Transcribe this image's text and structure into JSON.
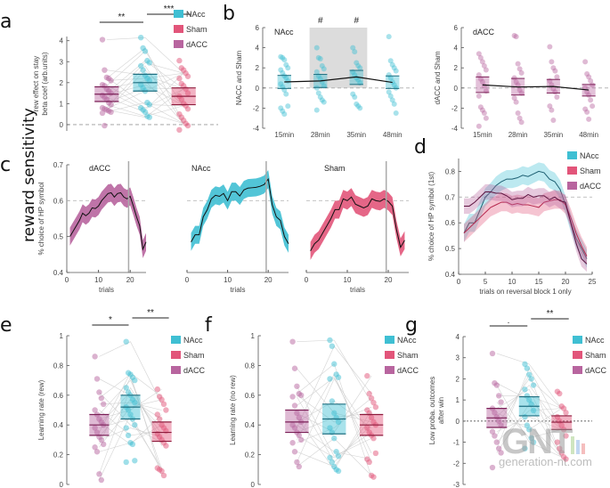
{
  "side_label": "reward sensitivity",
  "colors": {
    "NAcc": "#3fbfd3",
    "Sham": "#e2557a",
    "dACC": "#b8659f"
  },
  "legend": [
    {
      "name": "NAcc"
    },
    {
      "name": "Sham"
    },
    {
      "name": "dACC"
    }
  ],
  "watermark": {
    "logo": "GNT",
    "site": "generation-nt.com"
  },
  "chart_data": [
    {
      "id": "a",
      "panel_label": "a",
      "type": "scatter",
      "ylabel_lines": [
        "rew effect on stay",
        "beta coef (arb.units)"
      ],
      "ylim": [
        -0.3,
        4.2
      ],
      "yticks": [
        0,
        1,
        2,
        3,
        4
      ],
      "groups": [
        {
          "name": "dACC",
          "mean": 1.45,
          "q1": 1.1,
          "q3": 1.8,
          "points": [
            4.05,
            2.6,
            2.25,
            2.2,
            2.1,
            1.9,
            1.85,
            1.7,
            1.6,
            1.5,
            1.4,
            1.3,
            1.2,
            1.05,
            0.95,
            0.8,
            0.75,
            0.7,
            0.65,
            0.6,
            0.55,
            -0.05
          ]
        },
        {
          "name": "NAcc",
          "mean": 2.0,
          "q1": 1.6,
          "q3": 2.4,
          "points": [
            4.15,
            3.65,
            3.5,
            3.05,
            2.95,
            2.8,
            2.6,
            2.35,
            2.2,
            2.1,
            1.9,
            1.75,
            1.6,
            1.05,
            0.95,
            0.8,
            0.7,
            0.6,
            0.4,
            0.35
          ]
        },
        {
          "name": "Sham",
          "mean": 1.35,
          "q1": 0.95,
          "q3": 1.75,
          "points": [
            3.05,
            2.7,
            2.6,
            2.45,
            2.3,
            2.2,
            1.95,
            1.85,
            1.7,
            1.5,
            1.35,
            1.2,
            1.0,
            0.9,
            0.75,
            0.5,
            0.35,
            0.2,
            0.05,
            -0.05,
            -0.25
          ]
        }
      ],
      "significance": [
        {
          "from": "dACC",
          "to": "NAcc",
          "label": "**"
        },
        {
          "from": "NAcc",
          "to": "Sham",
          "label": "***"
        }
      ]
    },
    {
      "id": "b1",
      "panel_label": "b",
      "type": "scatter",
      "title": "NAcc",
      "ylabel": "NACC and Sham",
      "ylim": [
        -4,
        6
      ],
      "yticks": [
        -4,
        -2,
        0,
        2,
        4,
        6
      ],
      "categories": [
        "15min",
        "28min",
        "35min",
        "48min"
      ],
      "shaded": [
        "28min",
        "35min"
      ],
      "markers": [
        {
          "at": "28min",
          "label": "#"
        },
        {
          "at": "35min",
          "label": "#"
        }
      ],
      "series": {
        "color": "NAcc",
        "mean": [
          0.6,
          0.7,
          1.1,
          0.55
        ],
        "q1": [
          -0.05,
          0.05,
          0.35,
          -0.05
        ],
        "q3": [
          1.25,
          1.35,
          1.75,
          1.2
        ],
        "points": [
          [
            3.1,
            3.0,
            2.8,
            2.3,
            2.0,
            1.8,
            1.5,
            1.2,
            1.0,
            0.7,
            0.4,
            0.1,
            -0.2,
            -0.6,
            -1.8,
            -2.0,
            -2.3,
            -2.6
          ],
          [
            4.0,
            3.0,
            2.9,
            2.2,
            1.9,
            1.6,
            1.2,
            0.9,
            0.6,
            0.2,
            0.0,
            -0.5,
            -0.9,
            -1.2,
            -1.4,
            -2.2
          ],
          [
            4.0,
            3.6,
            2.5,
            2.2,
            2.0,
            1.6,
            1.3,
            1.0,
            0.8,
            0.5,
            -0.6,
            -0.9,
            -1.6,
            -1.8,
            -2.0
          ],
          [
            5.1,
            2.7,
            2.3,
            2.0,
            1.7,
            1.3,
            1.0,
            0.6,
            0.3,
            0.0,
            -0.4,
            -0.8,
            -1.2,
            -1.6,
            -2.5
          ]
        ]
      }
    },
    {
      "id": "b2",
      "type": "scatter",
      "title": "dACC",
      "ylabel": "dACC and Sham",
      "ylim": [
        -4,
        6
      ],
      "yticks": [
        -4,
        -2,
        0,
        2,
        4,
        6
      ],
      "categories": [
        "15min",
        "28min",
        "35min",
        "48min"
      ],
      "series": {
        "color": "dACC",
        "mean": [
          0.3,
          0.1,
          0.15,
          -0.2
        ],
        "q1": [
          -0.45,
          -0.7,
          -0.5,
          -0.8
        ],
        "q3": [
          1.1,
          0.95,
          0.85,
          0.35
        ],
        "points": [
          [
            3.4,
            3.0,
            2.6,
            2.2,
            1.8,
            1.3,
            0.9,
            0.6,
            0.2,
            -0.3,
            -0.8,
            -1.9,
            -2.2,
            -2.5,
            -3.0,
            -3.8
          ],
          [
            5.2,
            5.1,
            2.4,
            1.9,
            1.5,
            1.0,
            0.6,
            0.3,
            -0.2,
            -0.5,
            -1.0,
            -1.4,
            -2.5,
            -3.0,
            -3.4
          ],
          [
            4.1,
            2.6,
            2.0,
            1.7,
            1.1,
            0.7,
            0.3,
            -0.1,
            -0.4,
            -0.9,
            -1.8,
            -2.2,
            -3.2
          ],
          [
            2.6,
            1.4,
            1.1,
            0.7,
            0.3,
            0.0,
            -0.4,
            -0.7,
            -1.2,
            -1.8,
            -2.1,
            -2.4,
            -3.1
          ]
        ]
      }
    },
    {
      "id": "c",
      "panel_label": "c",
      "type": "line",
      "ylabel": "% choice of HP symbol",
      "xlabel": "trials",
      "ylim": [
        0.4,
        0.7
      ],
      "yticks": [
        0.4,
        0.5,
        0.6,
        0.7
      ],
      "xlim": [
        0,
        25
      ],
      "xticks": [
        0,
        10,
        20
      ],
      "reference_y": 0.6,
      "vline_x": 19.5,
      "subplots": [
        {
          "title": "dACC",
          "color": "dACC",
          "band": 0.025,
          "y": [
            0.5,
            0.515,
            0.53,
            0.545,
            0.565,
            0.558,
            0.565,
            0.58,
            0.578,
            0.585,
            0.6,
            0.61,
            0.62,
            0.622,
            0.61,
            0.62,
            0.622,
            0.61,
            0.605,
            0.612,
            0.585,
            0.555,
            0.53,
            0.465,
            0.485
          ]
        },
        {
          "title": "NAcc",
          "color": "NAcc",
          "band": 0.025,
          "y": [
            0.485,
            0.505,
            0.505,
            0.555,
            0.575,
            0.605,
            0.615,
            0.612,
            0.62,
            0.6,
            0.625,
            0.625,
            0.613,
            0.63,
            0.635,
            0.636,
            0.637,
            0.64,
            0.645,
            0.66,
            0.588,
            0.555,
            0.545,
            0.5,
            0.48
          ]
        },
        {
          "title": "Sham",
          "color": "Sham",
          "band": 0.025,
          "y": [
            0.46,
            0.48,
            0.49,
            0.51,
            0.53,
            0.55,
            0.575,
            0.575,
            0.605,
            0.6,
            0.61,
            0.59,
            0.585,
            0.58,
            0.585,
            0.605,
            0.6,
            0.598,
            0.605,
            0.598,
            0.585,
            0.52,
            0.47,
            0.49
          ]
        }
      ]
    },
    {
      "id": "d",
      "panel_label": "d",
      "type": "line",
      "ylabel": "% choice of HP symbol (1st)",
      "xlabel": "trials on reversal block 1 only",
      "ylim": [
        0.4,
        0.85
      ],
      "yticks": [
        0.4,
        0.5,
        0.6,
        0.7,
        0.8
      ],
      "xlim": [
        0,
        25
      ],
      "xticks": [
        0,
        5,
        10,
        15,
        20,
        25
      ],
      "reference_y": 0.7,
      "series": [
        {
          "name": "NAcc",
          "color": "NAcc",
          "band": 0.035,
          "x": [
            1,
            2,
            3,
            4,
            5,
            6,
            7,
            8,
            9,
            10,
            11,
            12,
            13,
            14,
            15,
            16,
            17,
            18,
            19,
            20,
            21,
            22,
            23,
            24
          ],
          "y": [
            0.56,
            0.6,
            0.6,
            0.65,
            0.7,
            0.72,
            0.745,
            0.76,
            0.77,
            0.77,
            0.775,
            0.785,
            0.78,
            0.79,
            0.8,
            0.795,
            0.77,
            0.76,
            0.73,
            0.67,
            0.6,
            0.54,
            0.5,
            0.46
          ]
        },
        {
          "name": "Sham",
          "color": "Sham",
          "band": 0.035,
          "x": [
            1,
            2,
            3,
            4,
            5,
            6,
            7,
            8,
            9,
            10,
            11,
            12,
            13,
            14,
            15,
            16,
            17,
            18,
            19,
            20,
            21,
            22,
            23,
            24
          ],
          "y": [
            0.56,
            0.58,
            0.6,
            0.62,
            0.64,
            0.66,
            0.67,
            0.68,
            0.68,
            0.67,
            0.675,
            0.67,
            0.67,
            0.665,
            0.66,
            0.68,
            0.685,
            0.69,
            0.69,
            0.67,
            0.62,
            0.56,
            0.51,
            0.47
          ]
        },
        {
          "name": "dACC",
          "color": "dACC",
          "band": 0.03,
          "x": [
            1,
            2,
            3,
            4,
            5,
            6,
            7,
            8,
            9,
            10,
            11,
            12,
            13,
            14,
            15,
            16,
            17,
            18,
            19,
            20,
            21,
            22,
            23,
            24
          ],
          "y": [
            0.665,
            0.665,
            0.68,
            0.7,
            0.72,
            0.72,
            0.715,
            0.715,
            0.705,
            0.69,
            0.695,
            0.695,
            0.71,
            0.7,
            0.705,
            0.705,
            0.69,
            0.7,
            0.685,
            0.68,
            0.6,
            0.52,
            0.46,
            0.44
          ]
        }
      ]
    },
    {
      "id": "e",
      "panel_label": "e",
      "type": "scatter",
      "ylabel": "Learning rate (rew)",
      "ylim": [
        0,
        1
      ],
      "yticks": [
        0,
        0.2,
        0.4,
        0.6,
        0.8,
        1
      ],
      "groups": [
        {
          "name": "dACC",
          "mean": 0.4,
          "q1": 0.33,
          "q3": 0.47,
          "points": [
            0.86,
            0.71,
            0.62,
            0.58,
            0.54,
            0.5,
            0.47,
            0.44,
            0.42,
            0.4,
            0.38,
            0.35,
            0.32,
            0.3,
            0.27,
            0.25,
            0.22,
            0.07,
            0.03
          ]
        },
        {
          "name": "NAcc",
          "mean": 0.52,
          "q1": 0.44,
          "q3": 0.6,
          "points": [
            0.96,
            0.75,
            0.74,
            0.72,
            0.7,
            0.65,
            0.62,
            0.6,
            0.57,
            0.55,
            0.52,
            0.5,
            0.47,
            0.44,
            0.4,
            0.38,
            0.33,
            0.28,
            0.27,
            0.16,
            0.15
          ]
        },
        {
          "name": "Sham",
          "mean": 0.35,
          "q1": 0.29,
          "q3": 0.42,
          "points": [
            0.64,
            0.59,
            0.57,
            0.54,
            0.5,
            0.47,
            0.44,
            0.4,
            0.38,
            0.36,
            0.34,
            0.32,
            0.3,
            0.28,
            0.26,
            0.11,
            0.1,
            0.09,
            0.06
          ]
        }
      ],
      "significance": [
        {
          "from": "dACC",
          "to": "NAcc",
          "label": "*"
        },
        {
          "from": "NAcc",
          "to": "Sham",
          "label": "**"
        }
      ]
    },
    {
      "id": "f",
      "panel_label": "f",
      "type": "scatter",
      "ylabel": "Learning rate (no rew)",
      "ylim": [
        0,
        1
      ],
      "yticks": [
        0,
        0.2,
        0.4,
        0.6,
        0.8,
        1
      ],
      "groups": [
        {
          "name": "dACC",
          "mean": 0.42,
          "q1": 0.35,
          "q3": 0.5,
          "points": [
            0.96,
            0.78,
            0.66,
            0.61,
            0.6,
            0.59,
            0.53,
            0.48,
            0.45,
            0.42,
            0.4,
            0.38,
            0.35,
            0.33,
            0.3,
            0.28,
            0.22,
            0.15,
            0.12
          ]
        },
        {
          "name": "NAcc",
          "mean": 0.44,
          "q1": 0.34,
          "q3": 0.54,
          "points": [
            0.97,
            0.93,
            0.81,
            0.74,
            0.72,
            0.71,
            0.56,
            0.48,
            0.45,
            0.42,
            0.38,
            0.35,
            0.31,
            0.22,
            0.19,
            0.18,
            0.15,
            0.12,
            0.1,
            0.09
          ]
        },
        {
          "name": "Sham",
          "mean": 0.4,
          "q1": 0.33,
          "q3": 0.47,
          "points": [
            0.73,
            0.61,
            0.58,
            0.55,
            0.52,
            0.5,
            0.48,
            0.45,
            0.42,
            0.4,
            0.38,
            0.35,
            0.33,
            0.31,
            0.21,
            0.17,
            0.15,
            0.06,
            0.05
          ]
        }
      ]
    },
    {
      "id": "g",
      "panel_label": "g",
      "type": "scatter",
      "ylabel_lines": [
        "Low proba. outcomes",
        "after win"
      ],
      "ylim": [
        -3,
        4
      ],
      "yticks": [
        -3,
        -2,
        -1,
        0,
        1,
        2,
        3,
        4
      ],
      "groups": [
        {
          "name": "dACC",
          "mean": 0.15,
          "q1": -0.3,
          "q3": 0.6,
          "points": [
            3.2,
            1.8,
            1.7,
            1.2,
            0.9,
            0.6,
            0.4,
            0.2,
            0.0,
            -0.2,
            -0.5,
            -0.7,
            -1.0,
            -1.3,
            -1.5,
            -2.2
          ]
        },
        {
          "name": "NAcc",
          "mean": 0.7,
          "q1": 0.25,
          "q3": 1.15,
          "points": [
            2.7,
            2.5,
            2.2,
            2.0,
            1.7,
            1.5,
            1.2,
            1.0,
            0.8,
            0.5,
            0.2,
            -0.2,
            -0.4,
            -0.8,
            -1.0,
            -1.3
          ]
        },
        {
          "name": "Sham",
          "mean": -0.05,
          "q1": -0.4,
          "q3": 0.25,
          "points": [
            1.4,
            1.3,
            0.7,
            0.6,
            0.4,
            0.2,
            0.0,
            -0.2,
            -0.4,
            -0.7,
            -1.0,
            -1.3,
            -1.5,
            -1.7,
            -1.8
          ]
        }
      ],
      "significance": [
        {
          "from": "dACC",
          "to": "NAcc",
          "label": "."
        },
        {
          "from": "NAcc",
          "to": "Sham",
          "label": "**"
        }
      ]
    }
  ]
}
